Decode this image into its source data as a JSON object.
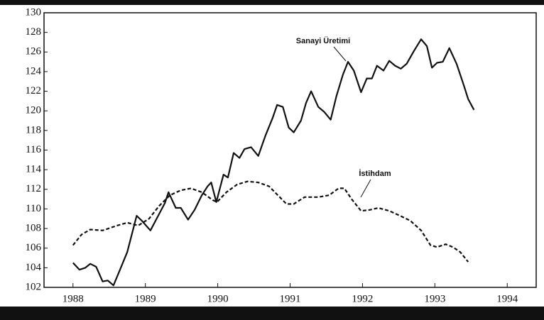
{
  "chart_data": {
    "type": "line",
    "series": [
      {
        "name": "Sanayi Üretimi",
        "color": "#111111",
        "dash": "solid",
        "x": [
          1988.0,
          1988.09,
          1988.17,
          1988.24,
          1988.32,
          1988.41,
          1988.48,
          1988.56,
          1988.65,
          1988.75,
          1988.88,
          1988.95,
          1989.07,
          1989.17,
          1989.27,
          1989.32,
          1989.42,
          1989.49,
          1989.59,
          1989.68,
          1989.78,
          1989.86,
          1989.91,
          1989.98,
          1990.08,
          1990.14,
          1990.22,
          1990.3,
          1990.37,
          1990.46,
          1990.56,
          1990.66,
          1990.76,
          1990.82,
          1990.9,
          1990.98,
          1991.05,
          1991.15,
          1991.22,
          1991.29,
          1991.39,
          1991.47,
          1991.56,
          1991.64,
          1991.73,
          1991.8,
          1991.88,
          1991.98,
          1992.06,
          1992.13,
          1992.2,
          1992.29,
          1992.37,
          1992.45,
          1992.53,
          1992.61,
          1992.71,
          1992.81,
          1992.89,
          1992.96,
          1993.03,
          1993.11,
          1993.2,
          1993.3,
          1993.4,
          1993.46,
          1993.54
        ],
        "values": [
          104.5,
          103.8,
          104,
          104.4,
          104.1,
          102.6,
          102.7,
          102.2,
          103.8,
          105.6,
          109.3,
          108.8,
          107.8,
          109.2,
          110.6,
          111.7,
          110.1,
          110.1,
          108.9,
          109.9,
          111.4,
          112.3,
          112.7,
          110.7,
          113.5,
          113.2,
          115.7,
          115.2,
          116.1,
          116.3,
          115.4,
          117.5,
          119.3,
          120.6,
          120.4,
          118.3,
          117.8,
          119,
          120.8,
          122,
          120.4,
          119.9,
          119.1,
          121.5,
          123.7,
          125,
          124.1,
          121.9,
          123.3,
          123.3,
          124.6,
          124.1,
          125.1,
          124.6,
          124.3,
          124.8,
          126.1,
          127.3,
          126.6,
          124.4,
          124.9,
          125,
          126.4,
          124.8,
          122.6,
          121.2,
          120.1
        ]
      },
      {
        "name": "İstihdam",
        "color": "#111111",
        "dash": "dashed",
        "x": [
          1988.0,
          1988.12,
          1988.24,
          1988.41,
          1988.61,
          1988.75,
          1988.9,
          1989.05,
          1989.19,
          1989.34,
          1989.49,
          1989.63,
          1989.78,
          1989.93,
          1989.99,
          1990.12,
          1990.27,
          1990.41,
          1990.56,
          1990.71,
          1990.83,
          1990.95,
          1991.05,
          1991.2,
          1991.39,
          1991.54,
          1991.67,
          1991.75,
          1991.85,
          1991.98,
          1992.1,
          1992.22,
          1992.37,
          1992.52,
          1992.66,
          1992.81,
          1992.94,
          1993.03,
          1993.15,
          1993.25,
          1993.35,
          1993.46
        ],
        "values": [
          106.3,
          107.4,
          107.9,
          107.8,
          108.3,
          108.6,
          108.3,
          109,
          110.3,
          111.4,
          111.9,
          112.1,
          111.7,
          110.9,
          110.7,
          111.7,
          112.5,
          112.8,
          112.7,
          112.3,
          111.4,
          110.5,
          110.5,
          111.2,
          111.2,
          111.4,
          112.1,
          112.1,
          111,
          109.8,
          109.9,
          110.1,
          109.8,
          109.3,
          108.8,
          107.8,
          106.3,
          106.1,
          106.4,
          106.1,
          105.6,
          104.6
        ]
      }
    ],
    "xlim": [
      1987.6,
      1994.4
    ],
    "xticks": [
      1988,
      1989,
      1990,
      1991,
      1992,
      1993,
      1994
    ],
    "ylim": [
      102,
      130
    ],
    "yticks": [
      102,
      104,
      106,
      108,
      110,
      112,
      114,
      116,
      118,
      120,
      122,
      124,
      126,
      128,
      130
    ],
    "grid": false
  }
}
